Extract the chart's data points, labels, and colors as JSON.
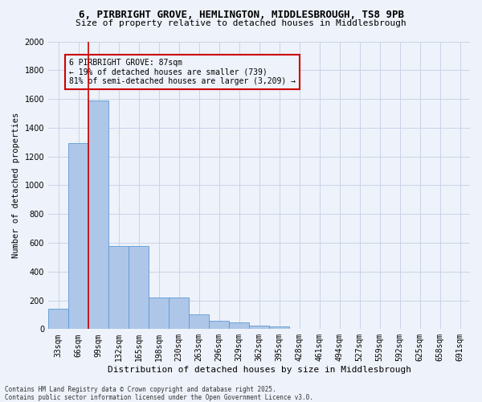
{
  "title": "6, PIRBRIGHT GROVE, HEMLINGTON, MIDDLESBROUGH, TS8 9PB",
  "subtitle": "Size of property relative to detached houses in Middlesbrough",
  "xlabel": "Distribution of detached houses by size in Middlesbrough",
  "ylabel": "Number of detached properties",
  "footer_line1": "Contains HM Land Registry data © Crown copyright and database right 2025.",
  "footer_line2": "Contains public sector information licensed under the Open Government Licence v3.0.",
  "categories": [
    "33sqm",
    "66sqm",
    "99sqm",
    "132sqm",
    "165sqm",
    "198sqm",
    "230sqm",
    "263sqm",
    "296sqm",
    "329sqm",
    "362sqm",
    "395sqm",
    "428sqm",
    "461sqm",
    "494sqm",
    "527sqm",
    "559sqm",
    "592sqm",
    "625sqm",
    "658sqm",
    "691sqm"
  ],
  "values": [
    140,
    1295,
    1590,
    580,
    580,
    220,
    220,
    105,
    55,
    45,
    25,
    20,
    0,
    0,
    0,
    0,
    0,
    0,
    0,
    0,
    0
  ],
  "bar_color": "#aec6e8",
  "bar_edge_color": "#5b9bd5",
  "grid_color": "#c8d4e8",
  "background_color": "#eef2fa",
  "annotation_box_color": "#cc0000",
  "vline_color": "#cc0000",
  "vline_x_index": 1.5,
  "ylim": [
    0,
    2000
  ],
  "yticks": [
    0,
    200,
    400,
    600,
    800,
    1000,
    1200,
    1400,
    1600,
    1800,
    2000
  ],
  "property_label": "6 PIRBRIGHT GROVE: 87sqm",
  "pct_smaller": 19,
  "pct_smaller_count": 739,
  "pct_larger": 81,
  "pct_larger_count": 3209,
  "title_fontsize": 9,
  "subtitle_fontsize": 8,
  "xlabel_fontsize": 8,
  "ylabel_fontsize": 7.5,
  "tick_fontsize": 7,
  "annot_fontsize": 7,
  "footer_fontsize": 5.5
}
